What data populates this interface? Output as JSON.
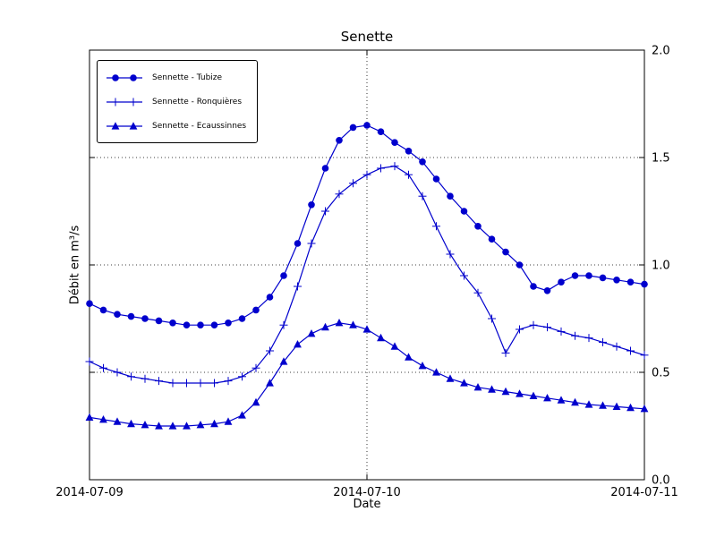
{
  "chart_data": {
    "type": "line",
    "title": "Senette",
    "xlabel": "Date",
    "ylabel": "Débit en m³/s",
    "line_color": "#0000cd",
    "ylim": [
      0,
      2
    ],
    "xlim_days": [
      0,
      2
    ],
    "yticks": [
      "0.0",
      "0.5",
      "1.0",
      "1.5",
      "2.0"
    ],
    "xticks": [
      "2014-07-09",
      "2014-07-10",
      "2014-07-11"
    ],
    "xtick_days": [
      0,
      1,
      2
    ],
    "grid": {
      "y_values": [
        0.5,
        1.0,
        1.5
      ],
      "x_values": [
        1.0
      ]
    },
    "legend_position": "upper-left",
    "x": [
      0,
      0.05,
      0.1,
      0.15,
      0.2,
      0.25,
      0.3,
      0.35,
      0.4,
      0.45,
      0.5,
      0.55,
      0.6,
      0.65,
      0.7,
      0.75,
      0.8,
      0.85,
      0.9,
      0.95,
      1,
      1.05,
      1.1,
      1.15,
      1.2,
      1.25,
      1.3,
      1.35,
      1.4,
      1.45,
      1.5,
      1.55,
      1.6,
      1.65,
      1.7,
      1.75,
      1.8,
      1.85,
      1.9,
      1.95,
      2
    ],
    "series": [
      {
        "name": "Sennette - Tubize",
        "marker": "circle",
        "y": [
          0.82,
          0.79,
          0.77,
          0.76,
          0.75,
          0.74,
          0.73,
          0.72,
          0.72,
          0.72,
          0.73,
          0.75,
          0.79,
          0.85,
          0.95,
          1.1,
          1.28,
          1.45,
          1.58,
          1.64,
          1.65,
          1.62,
          1.57,
          1.53,
          1.48,
          1.4,
          1.32,
          1.25,
          1.18,
          1.12,
          1.06,
          1.0,
          0.9,
          0.88,
          0.92,
          0.95,
          0.95,
          0.94,
          0.93,
          0.92,
          0.91
        ]
      },
      {
        "name": "Sennette - Ronquières",
        "marker": "plus",
        "y": [
          0.55,
          0.52,
          0.5,
          0.48,
          0.47,
          0.46,
          0.45,
          0.45,
          0.45,
          0.45,
          0.46,
          0.48,
          0.52,
          0.6,
          0.72,
          0.9,
          1.1,
          1.25,
          1.33,
          1.38,
          1.42,
          1.45,
          1.46,
          1.42,
          1.32,
          1.18,
          1.05,
          0.95,
          0.87,
          0.75,
          0.59,
          0.7,
          0.72,
          0.71,
          0.69,
          0.67,
          0.66,
          0.64,
          0.62,
          0.6,
          0.58
        ]
      },
      {
        "name": "Sennette - Ecaussinnes",
        "marker": "triangle",
        "y": [
          0.29,
          0.28,
          0.27,
          0.26,
          0.255,
          0.25,
          0.25,
          0.25,
          0.255,
          0.26,
          0.27,
          0.3,
          0.36,
          0.45,
          0.55,
          0.63,
          0.68,
          0.71,
          0.73,
          0.72,
          0.7,
          0.66,
          0.62,
          0.57,
          0.53,
          0.5,
          0.47,
          0.45,
          0.43,
          0.42,
          0.41,
          0.4,
          0.39,
          0.38,
          0.37,
          0.36,
          0.35,
          0.345,
          0.34,
          0.335,
          0.33
        ]
      }
    ]
  }
}
